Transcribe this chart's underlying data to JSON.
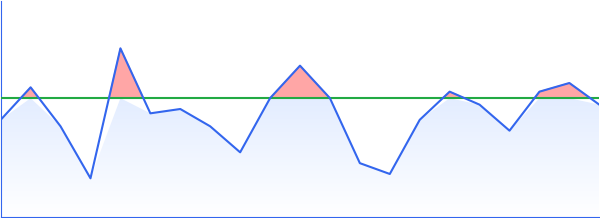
{
  "x": [
    0,
    1,
    2,
    3,
    4,
    5,
    6,
    7,
    8,
    9,
    10,
    11,
    12,
    13,
    14,
    15,
    16,
    17,
    18,
    19,
    20
  ],
  "y": [
    4.5,
    6.0,
    4.2,
    1.8,
    7.8,
    4.8,
    5.0,
    4.2,
    3.0,
    5.5,
    7.0,
    5.5,
    2.5,
    2.0,
    4.5,
    5.8,
    5.2,
    4.0,
    5.8,
    6.2,
    5.2
  ],
  "threshold": 5.5,
  "line_color": "#3366ee",
  "fill_color_below_top": "#aaccff",
  "fill_color_below_bot": "#ffffff",
  "fill_color_above": "#ff8888",
  "threshold_color": "#22aa44",
  "bg_color": "#ffffff",
  "spine_color": "#3366ee",
  "ylim": [
    0,
    10
  ],
  "xlim": [
    0,
    20
  ],
  "figsize": [
    6.0,
    2.18
  ],
  "dpi": 100
}
